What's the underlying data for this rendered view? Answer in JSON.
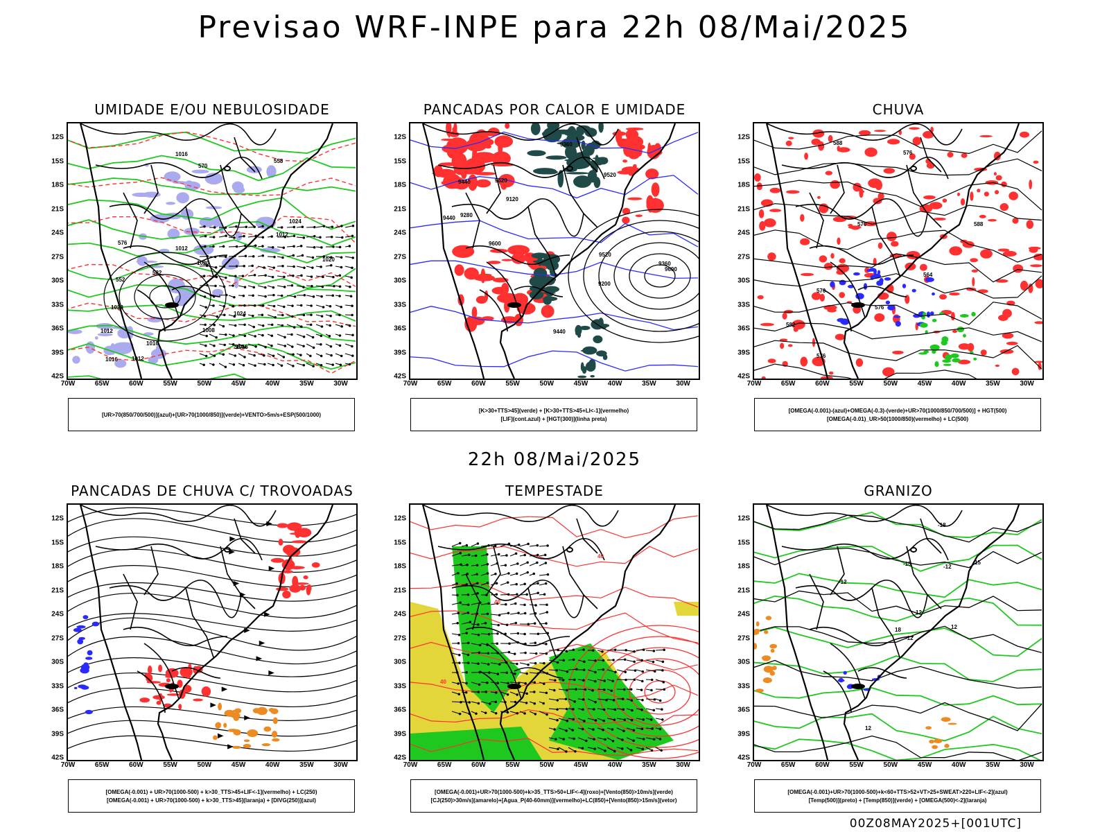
{
  "main_title": "Previsao WRF-INPE  para 22h 08/Mai/2025",
  "mid_label": "22h 08/Mai/2025",
  "footer": "00Z08MAY2025+[001UTC]",
  "lat_ticks": [
    "12S",
    "15S",
    "18S",
    "21S",
    "24S",
    "27S",
    "30S",
    "33S",
    "36S",
    "39S",
    "42S"
  ],
  "lon_ticks": [
    "70W",
    "65W",
    "60W",
    "55W",
    "50W",
    "45W",
    "40W",
    "35W",
    "30W"
  ],
  "colors": {
    "blue": "#2a2aff",
    "green": "#1ec81e",
    "red": "#ff3030",
    "lavender": "#aaaaee",
    "dark_teal": "#1f4a48",
    "yellow": "#e3d63a",
    "orange": "#ee8a22"
  },
  "panels": [
    {
      "id": "umidade",
      "title": "UMIDADE E/OU NEBULOSIDADE",
      "legend": [
        "[UR>70(850/700/500)](azul)+[UR>70(1000/850)](verde)+VENTO>5m/s+ESP(500/1000)"
      ],
      "contour_labels": [
        "1016",
        "1016",
        "1012",
        "1016",
        "1016",
        "1020",
        "1020",
        "1024",
        "1012",
        "1008",
        "1012",
        "1028",
        "1024",
        "1012",
        "576",
        "570",
        "552",
        "558",
        "564",
        "582"
      ]
    },
    {
      "id": "pancadas-calor",
      "title": "PANCADAS POR CALOR E UMIDADE",
      "legend": [
        "[K>30+TTS>45](verde) + [K>30+TTS>45+LI<-1](vermelho)",
        "[LIF](cont.azul) + [HGT(300)](linha preta)"
      ],
      "contour_labels": [
        "9600",
        "9520",
        "9440",
        "9360",
        "9280",
        "9200",
        "9120",
        "9600",
        "9520",
        "9520",
        "9440",
        "9440",
        "9360"
      ]
    },
    {
      "id": "chuva",
      "title": "CHUVA",
      "legend": [
        "[OMEGA(-0.001)-(azul)+OMEGA(-0.3)-(verde)+UR>70(1000/850/700/500)] + HGT(500)",
        "[OMEGA(-0.01)_UR>50(1000/850)(vermelho) + LC(500)"
      ],
      "contour_labels": [
        "588",
        "588",
        "582",
        "576",
        "570",
        "576",
        "576",
        "570",
        "564"
      ]
    },
    {
      "id": "pancadas-trovoadas",
      "title": "PANCADAS DE CHUVA C/ TROVOADAS",
      "legend": [
        "[OMEGA(-0.001) + UR>70(1000-500) + k>30_TTS>45+LIF<-1](vermelho) + LC(250)",
        "[OMEGA(-0.001) + UR>70(1000-500) + k>30_TTS>45](laranja) + [DIVG(250)](azul)"
      ],
      "contour_labels": []
    },
    {
      "id": "tempestade",
      "title": "TEMPESTADE",
      "legend": [
        "[OMEGA(-0.001)+UR>70(1000-500)+k>35_TTS>50+LIF<-4](roxo)+[Vento(850)>10m/s](verde)",
        "[CJ(250)>30m/s](amarelo)+[Agua_P(40-60mm)](vermelho)+LC(850)+[Vento(850)>15m/s](vetor)"
      ],
      "contour_labels": [
        "40",
        "40",
        "40"
      ]
    },
    {
      "id": "granizo",
      "title": "GRANIZO",
      "legend": [
        "[OMEGA(-0.001)+UR>70(1000-500)+k<60+TTS>52+VT>25+SWEAT>220+LIF<-2](azul)",
        "[Temp(500)](preto) + [Temp(850)](verde) + [OMEGA(500)<-2](laranja)"
      ],
      "contour_labels": [
        "-12",
        "-12",
        "-12",
        "-15",
        "-18",
        "12",
        "15",
        "12",
        "18",
        "12"
      ]
    }
  ]
}
